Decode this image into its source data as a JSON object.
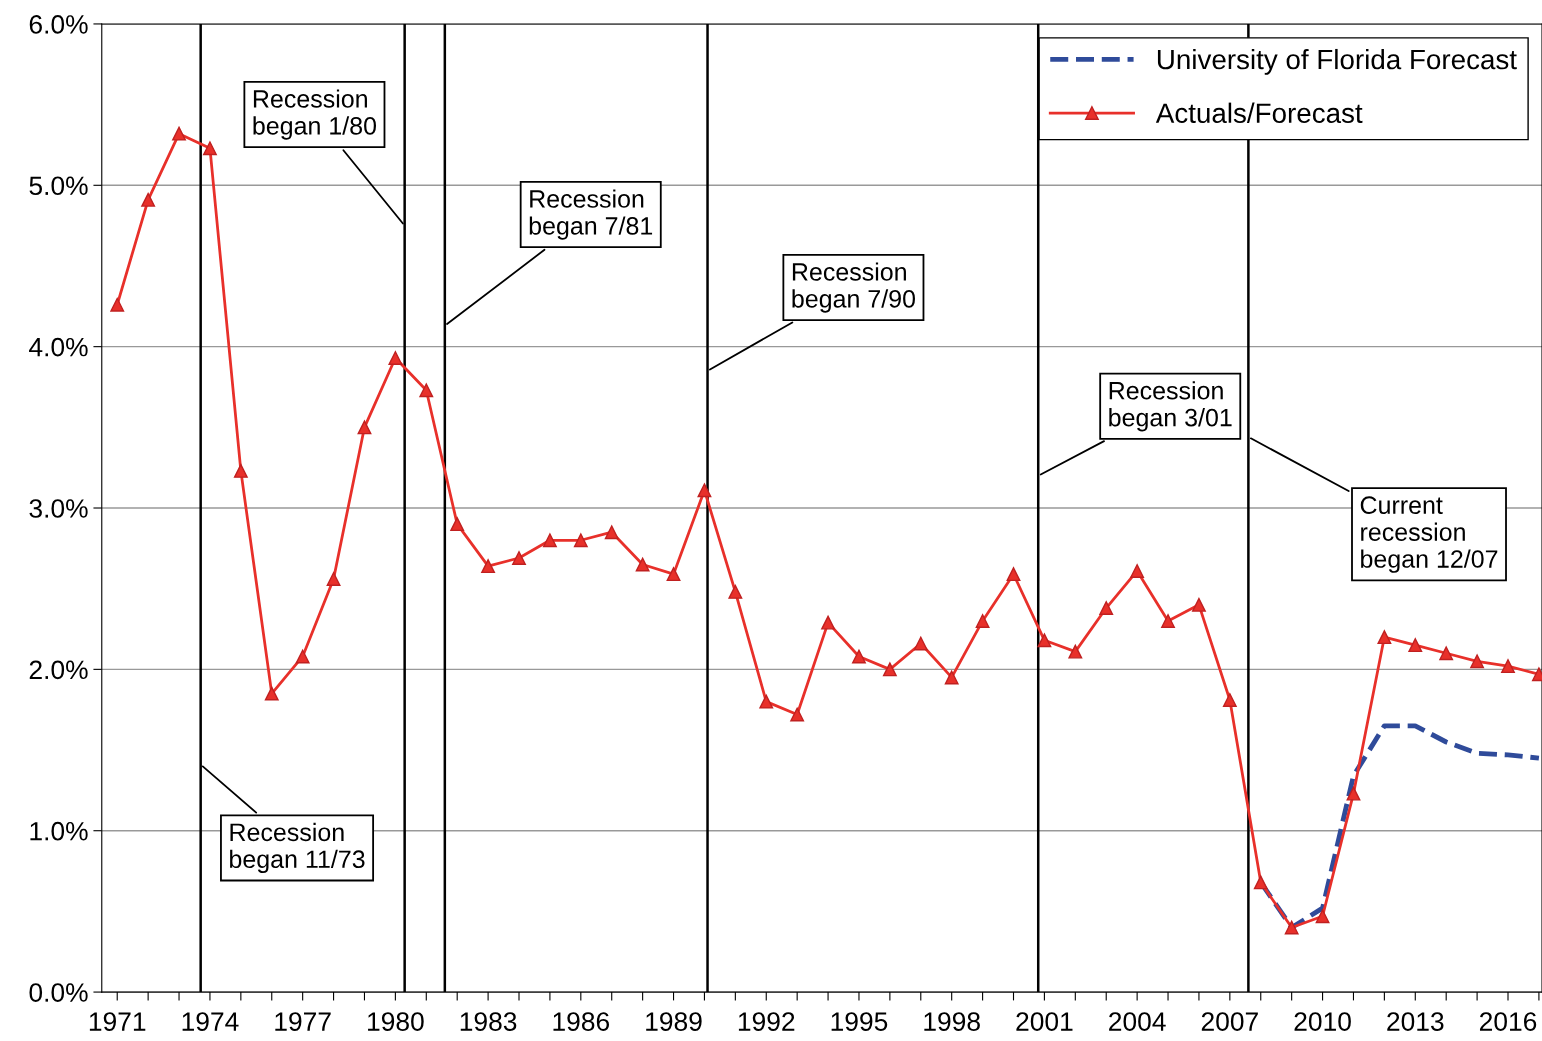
{
  "chart_data": {
    "type": "line",
    "x": [
      1971,
      1972,
      1973,
      1974,
      1975,
      1976,
      1977,
      1978,
      1979,
      1980,
      1981,
      1982,
      1983,
      1984,
      1985,
      1986,
      1987,
      1988,
      1989,
      1990,
      1991,
      1992,
      1993,
      1994,
      1995,
      1996,
      1997,
      1998,
      1999,
      2000,
      2001,
      2002,
      2003,
      2004,
      2005,
      2006,
      2007,
      2008,
      2009,
      2010,
      2011,
      2012,
      2013,
      2014,
      2015,
      2016,
      2017
    ],
    "series": [
      {
        "name": "University of Florida Forecast",
        "color": "#2f4b9a",
        "line_style": "dashed",
        "marker": "none",
        "x": [
          2008,
          2009,
          2010,
          2011,
          2012,
          2013,
          2014,
          2015,
          2016,
          2017
        ],
        "values": [
          0.68,
          0.4,
          0.52,
          1.34,
          1.65,
          1.65,
          1.55,
          1.48,
          1.47,
          1.45
        ]
      },
      {
        "name": "Actuals/Forecast",
        "color": "#e8302a",
        "line_style": "solid",
        "marker": "triangle",
        "values": [
          4.26,
          4.91,
          5.32,
          5.23,
          3.23,
          1.85,
          2.08,
          2.56,
          3.5,
          3.93,
          3.73,
          2.9,
          2.64,
          2.69,
          2.8,
          2.8,
          2.85,
          2.65,
          2.59,
          3.11,
          2.48,
          1.8,
          1.72,
          2.29,
          2.08,
          2.0,
          2.16,
          1.95,
          2.3,
          2.59,
          2.18,
          2.11,
          2.38,
          2.61,
          2.3,
          2.4,
          1.81,
          0.68,
          0.4,
          0.47,
          1.23,
          2.2,
          2.15,
          2.1,
          2.05,
          2.02,
          1.97
        ]
      }
    ],
    "xlim": [
      1970.5,
      2017.1
    ],
    "xticks": [
      {
        "value": 1971,
        "label": "1971"
      },
      {
        "value": 1972,
        "label": null
      },
      {
        "value": 1973,
        "label": null
      },
      {
        "value": 1974,
        "label": "1974"
      },
      {
        "value": 1975,
        "label": null
      },
      {
        "value": 1976,
        "label": null
      },
      {
        "value": 1977,
        "label": "1977"
      },
      {
        "value": 1978,
        "label": null
      },
      {
        "value": 1979,
        "label": null
      },
      {
        "value": 1980,
        "label": "1980"
      },
      {
        "value": 1981,
        "label": null
      },
      {
        "value": 1982,
        "label": null
      },
      {
        "value": 1983,
        "label": "1983"
      },
      {
        "value": 1984,
        "label": null
      },
      {
        "value": 1985,
        "label": null
      },
      {
        "value": 1986,
        "label": "1986"
      },
      {
        "value": 1987,
        "label": null
      },
      {
        "value": 1988,
        "label": null
      },
      {
        "value": 1989,
        "label": "1989"
      },
      {
        "value": 1990,
        "label": null
      },
      {
        "value": 1991,
        "label": null
      },
      {
        "value": 1992,
        "label": "1992"
      },
      {
        "value": 1993,
        "label": null
      },
      {
        "value": 1994,
        "label": null
      },
      {
        "value": 1995,
        "label": "1995"
      },
      {
        "value": 1996,
        "label": null
      },
      {
        "value": 1997,
        "label": null
      },
      {
        "value": 1998,
        "label": "1998"
      },
      {
        "value": 1999,
        "label": null
      },
      {
        "value": 2000,
        "label": null
      },
      {
        "value": 2001,
        "label": "2001"
      },
      {
        "value": 2002,
        "label": null
      },
      {
        "value": 2003,
        "label": null
      },
      {
        "value": 2004,
        "label": "2004"
      },
      {
        "value": 2005,
        "label": null
      },
      {
        "value": 2006,
        "label": null
      },
      {
        "value": 2007,
        "label": "2007"
      },
      {
        "value": 2008,
        "label": null
      },
      {
        "value": 2009,
        "label": null
      },
      {
        "value": 2010,
        "label": "2010"
      },
      {
        "value": 2011,
        "label": null
      },
      {
        "value": 2012,
        "label": null
      },
      {
        "value": 2013,
        "label": "2013"
      },
      {
        "value": 2014,
        "label": null
      },
      {
        "value": 2015,
        "label": null
      },
      {
        "value": 2016,
        "label": "2016"
      },
      {
        "value": 2017,
        "label": null
      }
    ],
    "ylim": [
      0,
      6
    ],
    "yticks": [
      {
        "value": 0,
        "label": "0.0%"
      },
      {
        "value": 1,
        "label": "1.0%"
      },
      {
        "value": 2,
        "label": "2.0%"
      },
      {
        "value": 3,
        "label": "3.0%"
      },
      {
        "value": 4,
        "label": "4.0%"
      },
      {
        "value": 5,
        "label": "5.0%"
      },
      {
        "value": 6,
        "label": "6.0%"
      }
    ],
    "grid": "y",
    "legend": "top right",
    "ref_lines": [
      {
        "axis": "x",
        "value": 1973.7,
        "color": "#000000"
      },
      {
        "axis": "x",
        "value": 1980.3,
        "color": "#000000"
      },
      {
        "axis": "x",
        "value": 1981.6,
        "color": "#000000"
      },
      {
        "axis": "x",
        "value": 1990.1,
        "color": "#000000"
      },
      {
        "axis": "x",
        "value": 2000.8,
        "color": "#000000"
      },
      {
        "axis": "x",
        "value": 2007.6,
        "color": "#000000"
      }
    ],
    "annotations": [
      {
        "text": "Recession\nbegan 1/80",
        "x": 1980.3,
        "y": 4.75
      },
      {
        "text": "Recession\nbegan 7/81",
        "x": 1981.6,
        "y": 4.13
      },
      {
        "text": "Recession\nbegan 7/90",
        "x": 1990.1,
        "y": 3.85
      },
      {
        "text": "Recession\nbegan 3/01",
        "x": 2000.8,
        "y": 3.2
      },
      {
        "text": "Current\nrecession\nbegan 12/07",
        "x": 2007.6,
        "y": 3.44
      },
      {
        "text": "Recession\nbegan 11/73",
        "x": 1973.7,
        "y": 1.41
      }
    ]
  }
}
